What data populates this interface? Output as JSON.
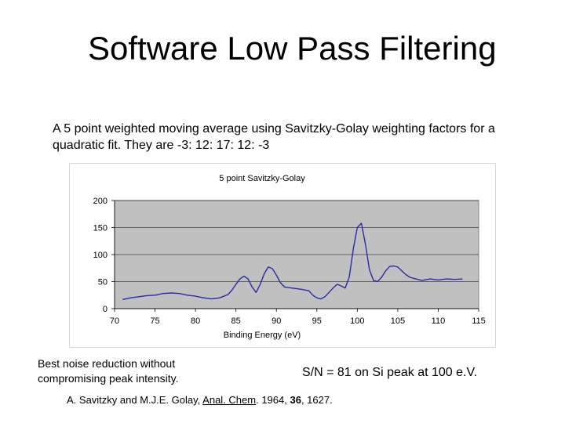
{
  "slide": {
    "title": "Software Low Pass Filtering",
    "description": "A 5 point weighted moving average using Savitzky-Golay weighting factors for a quadratic fit.  They are  -3: 12: 17: 12: -3",
    "caption_left": "Best noise reduction without compromising peak intensity.",
    "caption_right": "S/N = 81 on Si peak at 100 e.V.",
    "citation": {
      "authors": "A. Savitzky and M.J.E. Golay, ",
      "journal": "Anal. Chem",
      "year": ". 1964, ",
      "volume": "36",
      "pages": ", 1627."
    }
  },
  "colors": {
    "plot_background": "#c0c0c0",
    "line": "#2a2aa6"
  },
  "chart_data": {
    "type": "line",
    "title": "5 point Savitzky-Golay",
    "xlabel": "Binding Energy (eV)",
    "ylabel": "",
    "xlim": [
      70,
      115
    ],
    "ylim": [
      0,
      200
    ],
    "xticks": [
      70,
      75,
      80,
      85,
      90,
      95,
      100,
      105,
      110,
      115
    ],
    "yticks": [
      0,
      50,
      100,
      150,
      200
    ],
    "grid": "horizontal",
    "series": [
      {
        "x": [
          71,
          72,
          73,
          74,
          75,
          76,
          77,
          78,
          79,
          80,
          81,
          82,
          83,
          84,
          84.5,
          85,
          85.5,
          86,
          86.5,
          87,
          87.5,
          88,
          88.5,
          89,
          89.5,
          90,
          90.5,
          91,
          92,
          93,
          94,
          94.5,
          95,
          95.5,
          96,
          96.5,
          97,
          97.5,
          98,
          98.5,
          99,
          99.5,
          100,
          100.5,
          101,
          101.5,
          102,
          102.5,
          103,
          103.5,
          104,
          104.5,
          105,
          105.5,
          106,
          106.5,
          107,
          108,
          109,
          110,
          111,
          112,
          113
        ],
        "y": [
          17,
          20,
          22,
          24,
          25,
          28,
          29,
          28,
          25,
          23,
          20,
          18,
          20,
          26,
          34,
          45,
          55,
          60,
          55,
          40,
          30,
          45,
          65,
          77,
          74,
          62,
          48,
          40,
          38,
          36,
          33,
          25,
          20,
          18,
          22,
          30,
          38,
          45,
          42,
          38,
          58,
          110,
          150,
          158,
          120,
          72,
          52,
          50,
          58,
          70,
          78,
          79,
          77,
          70,
          63,
          58,
          56,
          52,
          55,
          53,
          55,
          54,
          55
        ]
      }
    ]
  }
}
